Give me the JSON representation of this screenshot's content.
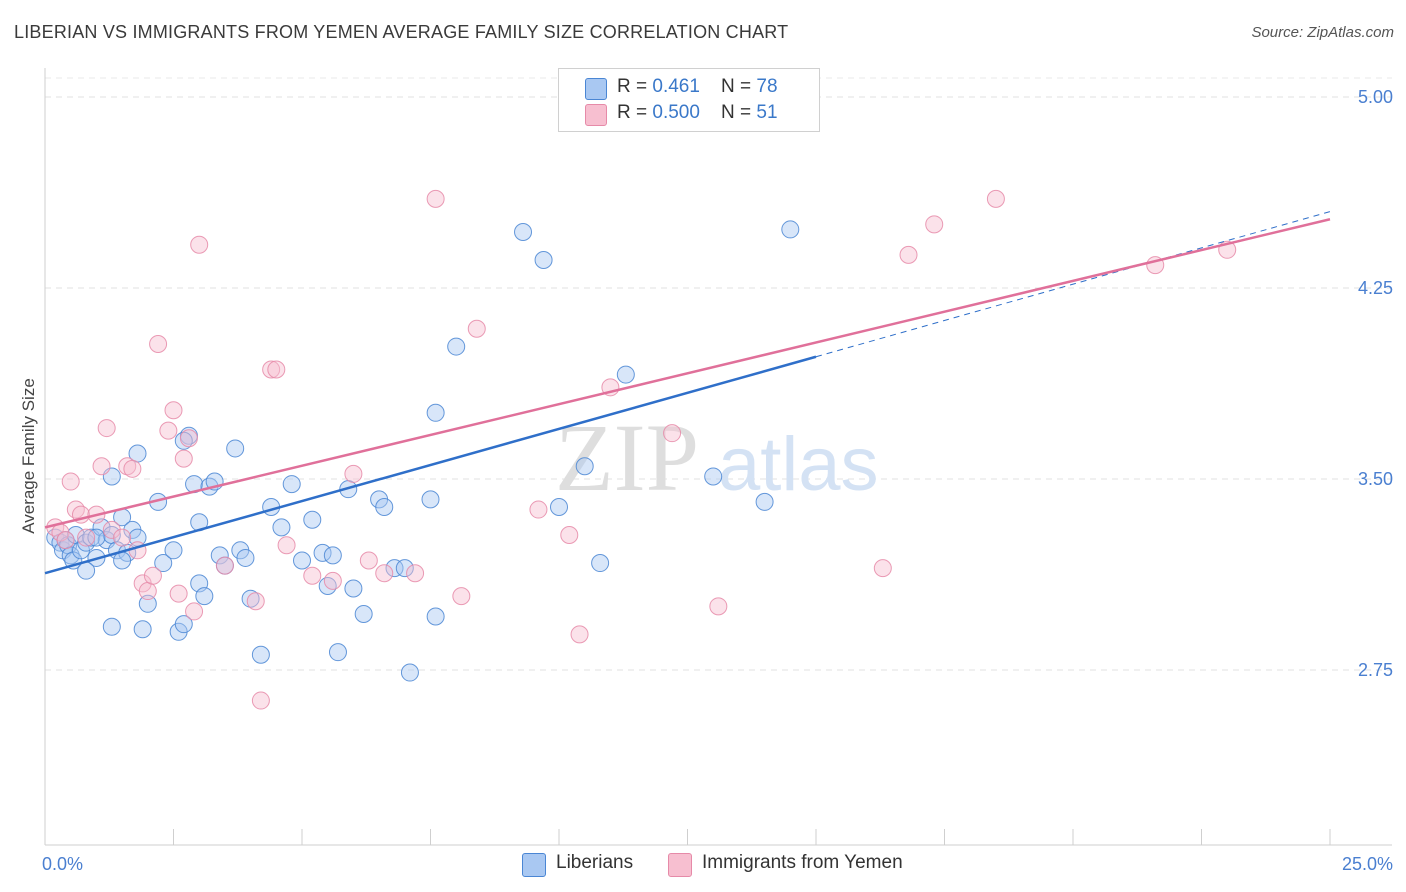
{
  "title": "LIBERIAN VS IMMIGRANTS FROM YEMEN AVERAGE FAMILY SIZE CORRELATION CHART",
  "source": "Source: ZipAtlas.com",
  "watermark": {
    "zip": "ZIP",
    "atlas": "atlas"
  },
  "legend": {
    "rows": [
      {
        "r_label": "R = ",
        "r_value": "0.461",
        "n_label": "N = ",
        "n_value": "78",
        "color": "#a9c8f2"
      },
      {
        "r_label": "R = ",
        "r_value": "0.500",
        "n_label": "N = ",
        "n_value": "51",
        "color": "#f7bfd0"
      }
    ]
  },
  "bottom_legend": [
    {
      "label": "Liberians",
      "color": "#a9c8f2"
    },
    {
      "label": "Immigrants from Yemen",
      "color": "#f7bfd0"
    }
  ],
  "chart_data": {
    "type": "scatter",
    "title": "LIBERIAN VS IMMIGRANTS FROM YEMEN AVERAGE FAMILY SIZE CORRELATION CHART",
    "xlabel": "",
    "ylabel": "Average Family Size",
    "x_tick_labels": [
      "0.0%",
      "25.0%"
    ],
    "y_ticks": [
      2.75,
      3.5,
      4.25,
      5.0
    ],
    "y_tick_labels": [
      "2.75",
      "3.50",
      "4.25",
      "5.00"
    ],
    "xlim": [
      0,
      25
    ],
    "ylim": [
      2.0,
      5.1
    ],
    "grid": "horizontal-dashed",
    "legend_position": "top-center",
    "series": [
      {
        "name": "Liberians",
        "color": "#4a86d4",
        "fill": "#a9c8f2",
        "trend": {
          "x": [
            0.0,
            15.0
          ],
          "y": [
            3.13,
            3.98
          ],
          "color": "#2f6fc9",
          "extension_to": [
            25.0,
            4.55
          ]
        },
        "points": [
          [
            0.2,
            3.27
          ],
          [
            0.3,
            3.25
          ],
          [
            0.35,
            3.22
          ],
          [
            0.4,
            3.26
          ],
          [
            0.45,
            3.24
          ],
          [
            0.5,
            3.2
          ],
          [
            0.55,
            3.18
          ],
          [
            0.6,
            3.28
          ],
          [
            0.7,
            3.22
          ],
          [
            0.8,
            3.25
          ],
          [
            0.9,
            3.27
          ],
          [
            1.0,
            3.19
          ],
          [
            1.1,
            3.31
          ],
          [
            1.2,
            3.26
          ],
          [
            1.3,
            3.28
          ],
          [
            1.4,
            3.22
          ],
          [
            1.5,
            3.35
          ],
          [
            1.6,
            3.21
          ],
          [
            1.7,
            3.3
          ],
          [
            1.8,
            3.27
          ],
          [
            0.8,
            3.14
          ],
          [
            1.3,
            3.51
          ],
          [
            1.5,
            3.18
          ],
          [
            1.8,
            3.6
          ],
          [
            2.0,
            3.01
          ],
          [
            2.2,
            3.41
          ],
          [
            2.3,
            3.17
          ],
          [
            2.5,
            3.22
          ],
          [
            1.3,
            2.92
          ],
          [
            1.9,
            2.91
          ],
          [
            2.6,
            2.9
          ],
          [
            2.7,
            2.93
          ],
          [
            2.8,
            3.67
          ],
          [
            2.9,
            3.48
          ],
          [
            3.0,
            3.33
          ],
          [
            3.0,
            3.09
          ],
          [
            3.1,
            3.04
          ],
          [
            3.2,
            3.47
          ],
          [
            3.3,
            3.49
          ],
          [
            3.4,
            3.2
          ],
          [
            3.5,
            3.16
          ],
          [
            3.7,
            3.62
          ],
          [
            3.8,
            3.22
          ],
          [
            3.9,
            3.19
          ],
          [
            4.0,
            3.03
          ],
          [
            4.2,
            2.81
          ],
          [
            4.4,
            3.39
          ],
          [
            4.6,
            3.31
          ],
          [
            4.8,
            3.48
          ],
          [
            5.0,
            3.18
          ],
          [
            5.2,
            3.34
          ],
          [
            5.4,
            3.21
          ],
          [
            5.5,
            3.08
          ],
          [
            5.6,
            3.2
          ],
          [
            5.7,
            2.82
          ],
          [
            5.9,
            3.46
          ],
          [
            6.0,
            3.07
          ],
          [
            6.2,
            2.97
          ],
          [
            6.5,
            3.42
          ],
          [
            6.6,
            3.39
          ],
          [
            6.8,
            3.15
          ],
          [
            7.0,
            3.15
          ],
          [
            7.1,
            2.74
          ],
          [
            7.5,
            3.42
          ],
          [
            7.6,
            3.76
          ],
          [
            7.6,
            2.96
          ],
          [
            8.0,
            4.02
          ],
          [
            9.3,
            4.47
          ],
          [
            9.7,
            4.36
          ],
          [
            10.0,
            3.39
          ],
          [
            10.5,
            3.55
          ],
          [
            10.8,
            3.17
          ],
          [
            11.3,
            3.91
          ],
          [
            13.0,
            3.51
          ],
          [
            14.0,
            3.41
          ],
          [
            14.5,
            4.48
          ],
          [
            2.7,
            3.65
          ],
          [
            1.0,
            3.27
          ]
        ]
      },
      {
        "name": "Immigrants from Yemen",
        "color": "#e68aa8",
        "fill": "#f7bfd0",
        "trend": {
          "x": [
            0.0,
            25.0
          ],
          "y": [
            3.31,
            4.52
          ],
          "color": "#e0709a"
        },
        "points": [
          [
            0.2,
            3.31
          ],
          [
            0.3,
            3.29
          ],
          [
            0.4,
            3.26
          ],
          [
            0.5,
            3.49
          ],
          [
            0.6,
            3.38
          ],
          [
            0.7,
            3.36
          ],
          [
            0.8,
            3.27
          ],
          [
            1.0,
            3.36
          ],
          [
            1.1,
            3.55
          ],
          [
            1.2,
            3.7
          ],
          [
            1.3,
            3.3
          ],
          [
            1.5,
            3.27
          ],
          [
            1.6,
            3.55
          ],
          [
            1.7,
            3.54
          ],
          [
            1.8,
            3.22
          ],
          [
            1.9,
            3.09
          ],
          [
            2.0,
            3.06
          ],
          [
            2.1,
            3.12
          ],
          [
            2.2,
            4.03
          ],
          [
            2.4,
            3.69
          ],
          [
            2.5,
            3.77
          ],
          [
            2.6,
            3.05
          ],
          [
            2.7,
            3.58
          ],
          [
            2.8,
            3.66
          ],
          [
            2.9,
            2.98
          ],
          [
            3.0,
            4.42
          ],
          [
            3.5,
            3.16
          ],
          [
            4.1,
            3.02
          ],
          [
            4.2,
            2.63
          ],
          [
            4.4,
            3.93
          ],
          [
            4.5,
            3.93
          ],
          [
            4.7,
            3.24
          ],
          [
            5.2,
            3.12
          ],
          [
            5.6,
            3.1
          ],
          [
            6.0,
            3.52
          ],
          [
            6.3,
            3.18
          ],
          [
            6.6,
            3.13
          ],
          [
            7.2,
            3.13
          ],
          [
            7.6,
            4.6
          ],
          [
            8.1,
            3.04
          ],
          [
            8.4,
            4.09
          ],
          [
            9.6,
            3.38
          ],
          [
            10.2,
            3.28
          ],
          [
            10.4,
            2.89
          ],
          [
            11.0,
            3.86
          ],
          [
            12.2,
            3.68
          ],
          [
            13.1,
            3.0
          ],
          [
            16.3,
            3.15
          ],
          [
            16.8,
            4.38
          ],
          [
            17.3,
            4.5
          ],
          [
            21.6,
            4.34
          ]
        ],
        "extra_points": [
          [
            23.0,
            4.4
          ],
          [
            18.5,
            4.6
          ]
        ]
      }
    ]
  }
}
